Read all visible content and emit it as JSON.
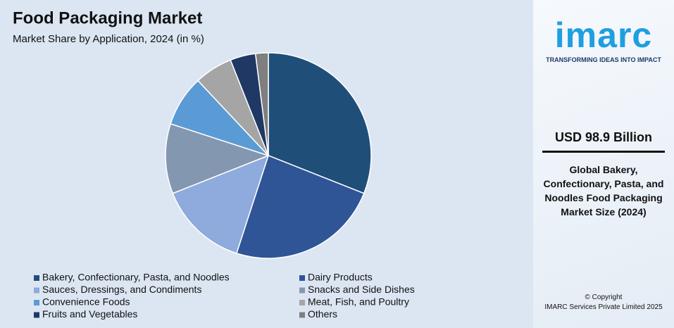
{
  "chart_data": {
    "type": "pie",
    "title": "Food Packaging Market",
    "subtitle": "Market Share by Application, 2024 (in %)",
    "categories": [
      "Bakery, Confectionary, Pasta, and Noodles",
      "Dairy Products",
      "Sauces, Dressings, and Condiments",
      "Snacks and Side Dishes",
      "Convenience Foods",
      "Meat, Fish, and Poultry",
      "Fruits and Vegetables",
      "Others"
    ],
    "values": [
      31,
      24,
      14,
      11,
      8,
      6,
      4,
      2
    ],
    "colors": [
      "#1f4e79",
      "#2f5597",
      "#8faadc",
      "#8497b0",
      "#5b9bd5",
      "#a5a5a5",
      "#203864",
      "#7f7f7f"
    ]
  },
  "panel": {
    "logo": "imarc",
    "tagline": "TRANSFORMING IDEAS INTO IMPACT",
    "headline": "USD 98.9 Billion",
    "description": "Global Bakery, Confectionary, Pasta, and Noodles Food Packaging Market Size (2024)",
    "copyright": "© Copyright",
    "owner": "IMARC Services Private Limited 2025"
  }
}
